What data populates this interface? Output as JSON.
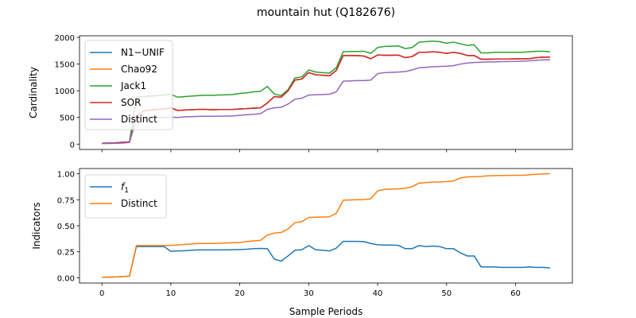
{
  "figure": {
    "title": "mountain hut (Q182676)",
    "xlabel": "Sample Periods"
  },
  "chart_data": [
    {
      "type": "line",
      "panel": "top",
      "ylabel": "Cardinality",
      "xlim": [
        -3.25,
        68.25
      ],
      "ylim": [
        -100,
        2030
      ],
      "xticks": [
        0,
        10,
        20,
        30,
        40,
        50,
        60
      ],
      "yticks": [
        0,
        500,
        1000,
        1500,
        2000
      ],
      "xticklabels_visible": false,
      "grid": false,
      "legend": "top-left",
      "x": [
        0,
        1,
        2,
        3,
        4,
        5,
        6,
        7,
        8,
        9,
        10,
        11,
        12,
        13,
        14,
        15,
        16,
        17,
        18,
        19,
        20,
        21,
        22,
        23,
        24,
        25,
        26,
        27,
        28,
        29,
        30,
        31,
        32,
        33,
        34,
        35,
        36,
        37,
        38,
        39,
        40,
        41,
        42,
        43,
        44,
        45,
        46,
        47,
        48,
        49,
        50,
        51,
        52,
        53,
        54,
        55,
        56,
        57,
        58,
        59,
        60,
        61,
        62,
        63,
        64,
        65
      ],
      "series": [
        {
          "name": "N1−UNIF",
          "color": "#1f77b4",
          "values": [
            15,
            20,
            25,
            35,
            40,
            520,
            620,
            640,
            650,
            660,
            680,
            630,
            640,
            645,
            650,
            650,
            645,
            648,
            648,
            650,
            660,
            665,
            675,
            680,
            770,
            890,
            880,
            1000,
            1200,
            1220,
            1340,
            1300,
            1290,
            1280,
            1380,
            1660,
            1660,
            1660,
            1650,
            1600,
            1670,
            1665,
            1665,
            1668,
            1620,
            1640,
            1720,
            1720,
            1730,
            1720,
            1700,
            1720,
            1700,
            1660,
            1660,
            1590,
            1590,
            1595,
            1595,
            1595,
            1598,
            1600,
            1600,
            1620,
            1630,
            1630
          ]
        },
        {
          "name": "Chao92",
          "color": "#ff7f0e",
          "values": [
            15,
            20,
            25,
            35,
            40,
            520,
            620,
            640,
            650,
            660,
            680,
            630,
            640,
            645,
            650,
            650,
            645,
            648,
            648,
            650,
            660,
            665,
            675,
            680,
            770,
            890,
            880,
            1000,
            1200,
            1220,
            1340,
            1300,
            1290,
            1280,
            1380,
            1660,
            1660,
            1660,
            1650,
            1600,
            1670,
            1665,
            1665,
            1668,
            1620,
            1640,
            1720,
            1720,
            1730,
            1720,
            1700,
            1720,
            1700,
            1660,
            1660,
            1590,
            1590,
            1595,
            1595,
            1595,
            1598,
            1600,
            1600,
            1620,
            1630,
            1630
          ]
        },
        {
          "name": "Jack1",
          "color": "#2ca02c",
          "values": [
            15,
            20,
            25,
            35,
            40,
            880,
            890,
            900,
            910,
            920,
            930,
            880,
            890,
            900,
            910,
            915,
            915,
            920,
            925,
            930,
            950,
            960,
            980,
            990,
            1080,
            940,
            910,
            1020,
            1240,
            1260,
            1390,
            1350,
            1340,
            1330,
            1430,
            1730,
            1735,
            1735,
            1740,
            1700,
            1810,
            1830,
            1835,
            1840,
            1790,
            1810,
            1910,
            1920,
            1930,
            1920,
            1890,
            1910,
            1880,
            1850,
            1860,
            1710,
            1710,
            1720,
            1720,
            1720,
            1720,
            1720,
            1730,
            1740,
            1740,
            1730
          ]
        },
        {
          "name": "SOR",
          "color": "#d62728",
          "values": [
            15,
            20,
            25,
            35,
            40,
            520,
            620,
            640,
            650,
            660,
            680,
            630,
            640,
            645,
            650,
            650,
            645,
            648,
            648,
            650,
            660,
            665,
            675,
            680,
            770,
            890,
            880,
            1000,
            1200,
            1220,
            1340,
            1300,
            1290,
            1280,
            1380,
            1660,
            1660,
            1660,
            1650,
            1600,
            1670,
            1665,
            1665,
            1668,
            1620,
            1640,
            1720,
            1720,
            1730,
            1720,
            1700,
            1720,
            1700,
            1660,
            1660,
            1590,
            1590,
            1595,
            1595,
            1595,
            1598,
            1600,
            1600,
            1620,
            1630,
            1630
          ]
        },
        {
          "name": "Distinct",
          "color": "#9467bd",
          "values": [
            10,
            12,
            15,
            20,
            30,
            480,
            490,
            495,
            500,
            500,
            505,
            500,
            510,
            515,
            520,
            522,
            522,
            523,
            525,
            528,
            540,
            550,
            560,
            570,
            650,
            680,
            690,
            750,
            840,
            860,
            920,
            925,
            930,
            935,
            980,
            1180,
            1185,
            1190,
            1190,
            1200,
            1320,
            1340,
            1345,
            1350,
            1360,
            1390,
            1430,
            1440,
            1450,
            1455,
            1460,
            1470,
            1500,
            1520,
            1530,
            1535,
            1540,
            1540,
            1545,
            1548,
            1550,
            1555,
            1560,
            1570,
            1580,
            1580
          ]
        }
      ]
    },
    {
      "type": "line",
      "panel": "bottom",
      "ylabel": "Indicators",
      "xlabel": "Sample Periods",
      "xlim": [
        -3.25,
        68.25
      ],
      "ylim": [
        -0.05,
        1.05
      ],
      "xticks": [
        0,
        10,
        20,
        30,
        40,
        50,
        60
      ],
      "yticks": [
        0.0,
        0.25,
        0.5,
        0.75,
        1.0
      ],
      "yticklabels": [
        "0.00",
        "0.25",
        "0.50",
        "0.75",
        "1.00"
      ],
      "grid": false,
      "legend": "top-left",
      "x": [
        0,
        1,
        2,
        3,
        4,
        5,
        6,
        7,
        8,
        9,
        10,
        11,
        12,
        13,
        14,
        15,
        16,
        17,
        18,
        19,
        20,
        21,
        22,
        23,
        24,
        25,
        26,
        27,
        28,
        29,
        30,
        31,
        32,
        33,
        34,
        35,
        36,
        37,
        38,
        39,
        40,
        41,
        42,
        43,
        44,
        45,
        46,
        47,
        48,
        49,
        50,
        51,
        52,
        53,
        54,
        55,
        56,
        57,
        58,
        59,
        60,
        61,
        62,
        63,
        64,
        65
      ],
      "series": [
        {
          "name": "f1",
          "color": "#1f77b4",
          "values": [
            0.005,
            0.006,
            0.008,
            0.012,
            0.016,
            0.3,
            0.3,
            0.3,
            0.3,
            0.3,
            0.255,
            0.258,
            0.26,
            0.265,
            0.268,
            0.268,
            0.268,
            0.268,
            0.269,
            0.27,
            0.272,
            0.275,
            0.28,
            0.282,
            0.28,
            0.18,
            0.16,
            0.21,
            0.265,
            0.27,
            0.31,
            0.27,
            0.265,
            0.258,
            0.285,
            0.35,
            0.35,
            0.35,
            0.348,
            0.33,
            0.318,
            0.315,
            0.315,
            0.312,
            0.28,
            0.28,
            0.31,
            0.3,
            0.305,
            0.3,
            0.28,
            0.28,
            0.24,
            0.21,
            0.21,
            0.105,
            0.105,
            0.105,
            0.1,
            0.1,
            0.1,
            0.1,
            0.105,
            0.1,
            0.1,
            0.095
          ]
        },
        {
          "name": "Distinct",
          "color": "#ff7f0e",
          "values": [
            0.005,
            0.006,
            0.008,
            0.012,
            0.016,
            0.31,
            0.31,
            0.31,
            0.31,
            0.31,
            0.312,
            0.316,
            0.32,
            0.325,
            0.33,
            0.33,
            0.33,
            0.332,
            0.335,
            0.338,
            0.34,
            0.348,
            0.355,
            0.36,
            0.41,
            0.43,
            0.435,
            0.47,
            0.53,
            0.54,
            0.58,
            0.582,
            0.584,
            0.586,
            0.62,
            0.745,
            0.748,
            0.75,
            0.752,
            0.76,
            0.835,
            0.85,
            0.852,
            0.855,
            0.86,
            0.875,
            0.91,
            0.915,
            0.92,
            0.92,
            0.925,
            0.93,
            0.96,
            0.97,
            0.972,
            0.975,
            0.98,
            0.982,
            0.983,
            0.984,
            0.985,
            0.985,
            0.99,
            0.995,
            0.998,
            1.0
          ]
        }
      ]
    }
  ]
}
